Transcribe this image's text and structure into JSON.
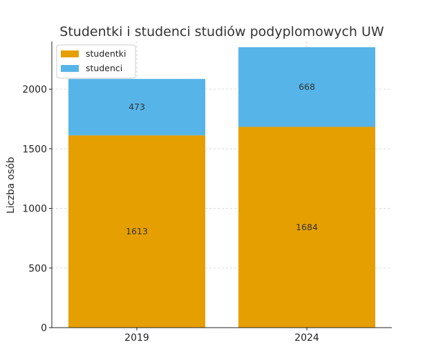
{
  "chart_data": {
    "type": "bar",
    "stacked": true,
    "title": "Studentki i studenci studiów podyplomowych UW",
    "xlabel": "",
    "ylabel": "Liczba osób",
    "categories": [
      "2019",
      "2024"
    ],
    "series": [
      {
        "name": "studentki",
        "values": [
          1613,
          1684
        ],
        "color": "#E69F00"
      },
      {
        "name": "studenci",
        "values": [
          473,
          668
        ],
        "color": "#56B4E9"
      }
    ],
    "ylim": [
      0,
      2400
    ],
    "yticks": [
      "0",
      "500",
      "1000",
      "1500",
      "2000"
    ],
    "grid": true,
    "legend": "top-left"
  }
}
